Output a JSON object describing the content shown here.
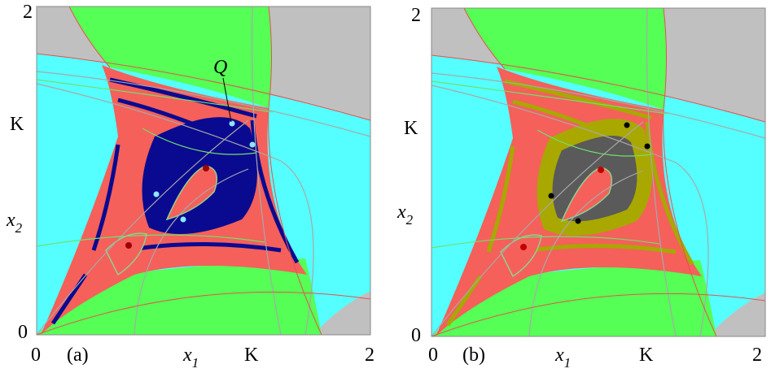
{
  "panels": [
    {
      "label": "(a)",
      "y_top": "2",
      "y_origin": "0",
      "y_k": "K",
      "y_axis": {
        "symbol": "x",
        "subscript": "2"
      },
      "x_origin": "0",
      "x_axis": {
        "symbol": "x",
        "subscript": "1"
      },
      "x_k": "K",
      "x_right": "2",
      "point_label": "Q"
    },
    {
      "label": "(b)",
      "y_top": "2",
      "y_origin": "0",
      "y_k": "K",
      "y_axis": {
        "symbol": "x",
        "subscript": "2"
      },
      "x_origin": "0",
      "x_axis": {
        "symbol": "x",
        "subscript": "1"
      },
      "x_k": "K",
      "x_right": "2"
    }
  ]
}
